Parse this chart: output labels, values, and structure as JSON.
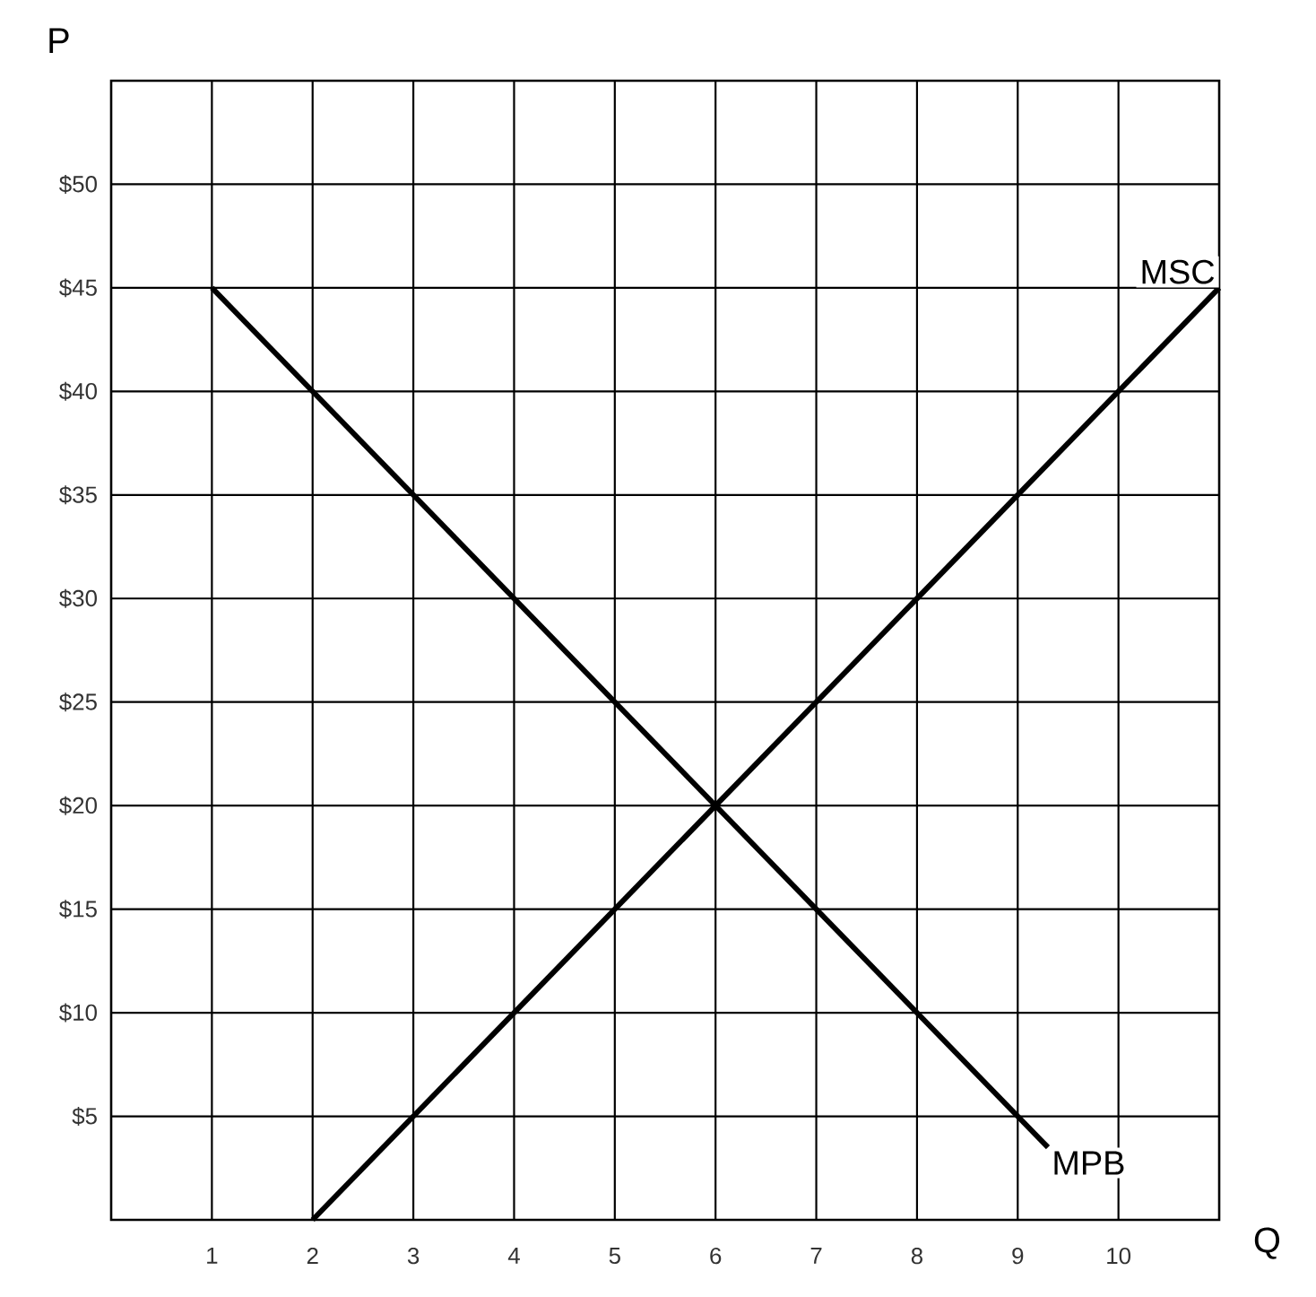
{
  "chart_data": {
    "type": "line",
    "xlabel": "Q",
    "ylabel": "P",
    "xlim": [
      0,
      11
    ],
    "ylim": [
      0,
      55
    ],
    "xticks": [
      1,
      2,
      3,
      4,
      5,
      6,
      7,
      8,
      9,
      10
    ],
    "yticks": [
      {
        "value": 5,
        "label": "$5"
      },
      {
        "value": 10,
        "label": "$10"
      },
      {
        "value": 15,
        "label": "$15"
      },
      {
        "value": 20,
        "label": "$20"
      },
      {
        "value": 25,
        "label": "$25"
      },
      {
        "value": 30,
        "label": "$30"
      },
      {
        "value": 35,
        "label": "$35"
      },
      {
        "value": 40,
        "label": "$40"
      },
      {
        "value": 45,
        "label": "$45"
      },
      {
        "value": 50,
        "label": "$50"
      }
    ],
    "series": [
      {
        "name": "MPB",
        "color": "#000000",
        "x": [
          1,
          9.3
        ],
        "values": [
          45,
          3.5
        ]
      },
      {
        "name": "MSC",
        "color": "#000000",
        "x": [
          2,
          11
        ],
        "values": [
          0,
          45
        ]
      }
    ],
    "grid": true,
    "legend": false,
    "marker": "none",
    "line_style": "solid"
  }
}
